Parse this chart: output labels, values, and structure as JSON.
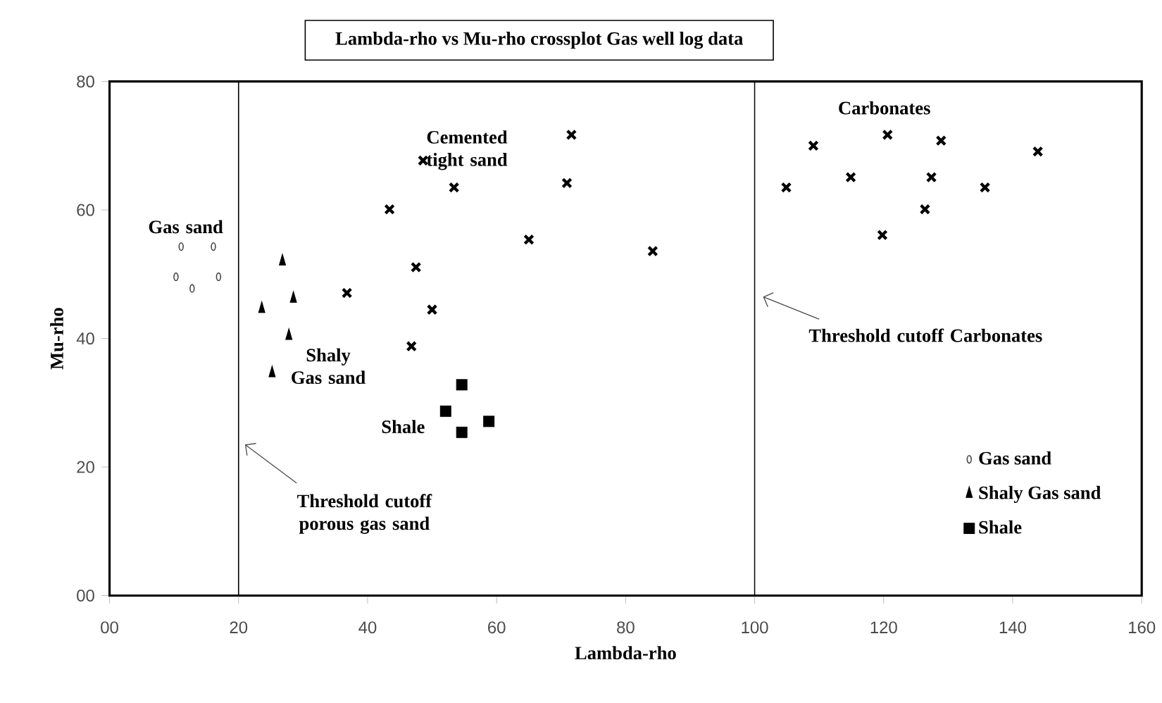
{
  "chart_data": {
    "type": "scatter",
    "title": "Lambda-rho vs Mu-rho crossplot Gas well log data",
    "xlabel": "Lambda-rho",
    "ylabel": "Mu-rho",
    "xlim": [
      0,
      160
    ],
    "ylim": [
      0,
      80
    ],
    "xticks": [
      {
        "value": 0,
        "label": "00"
      },
      20,
      40,
      60,
      80,
      100,
      120,
      140,
      160
    ],
    "yticks": [
      {
        "value": 0,
        "label": "00"
      },
      20,
      40,
      60,
      80
    ],
    "grid": false,
    "legend": "bottom right",
    "series": [
      {
        "name": "Gas sand",
        "color": "#444444",
        "marker": "circle",
        "x": [
          11.1,
          16.1,
          10.3,
          12.8,
          16.9
        ],
        "values": [
          54.3,
          54.3,
          49.6,
          47.8,
          49.6
        ]
      },
      {
        "name": "Shaly Gas sand",
        "color": "#000000",
        "marker": "triangle",
        "x": [
          26.8,
          23.6,
          28.5,
          27.8,
          25.2
        ],
        "values": [
          52,
          44.6,
          46.2,
          40.4,
          34.6
        ]
      },
      {
        "name": "Shale",
        "color": "#000000",
        "marker": "square",
        "x": [
          54.6,
          52.1,
          58.8,
          54.6
        ],
        "values": [
          32.8,
          28.7,
          27.1,
          25.4
        ]
      },
      {
        "color": "#000000",
        "marker": "cross",
        "x": [
          48.6,
          71.6,
          53.4,
          70.9,
          43.4,
          65,
          47.5,
          36.8,
          50,
          46.8,
          84.2,
          109.1,
          120.6,
          128.9,
          143.9,
          104.9,
          114.9,
          127.4,
          135.7,
          126.4,
          119.8
        ],
        "values": [
          67.7,
          71.7,
          63.5,
          64.2,
          60.1,
          55.4,
          51.1,
          47.1,
          44.5,
          38.8,
          53.6,
          70,
          71.7,
          70.8,
          69.1,
          63.5,
          65.1,
          65.1,
          63.5,
          60.1,
          56.1
        ]
      }
    ],
    "annotations": [
      "Gas sand",
      "Cemented tight sand",
      "Shaly Gas sand",
      "Shale",
      "Carbonates"
    ],
    "ref_lines": [
      {
        "axis": "x",
        "value": 20,
        "label": "Threshold cutoff porous gas sand",
        "color": "#000000",
        "line_style": "solid"
      },
      {
        "axis": "x",
        "value": 100,
        "label": "Threshold cutoff  Carbonates",
        "color": "#000000",
        "line_style": "solid"
      }
    ]
  }
}
